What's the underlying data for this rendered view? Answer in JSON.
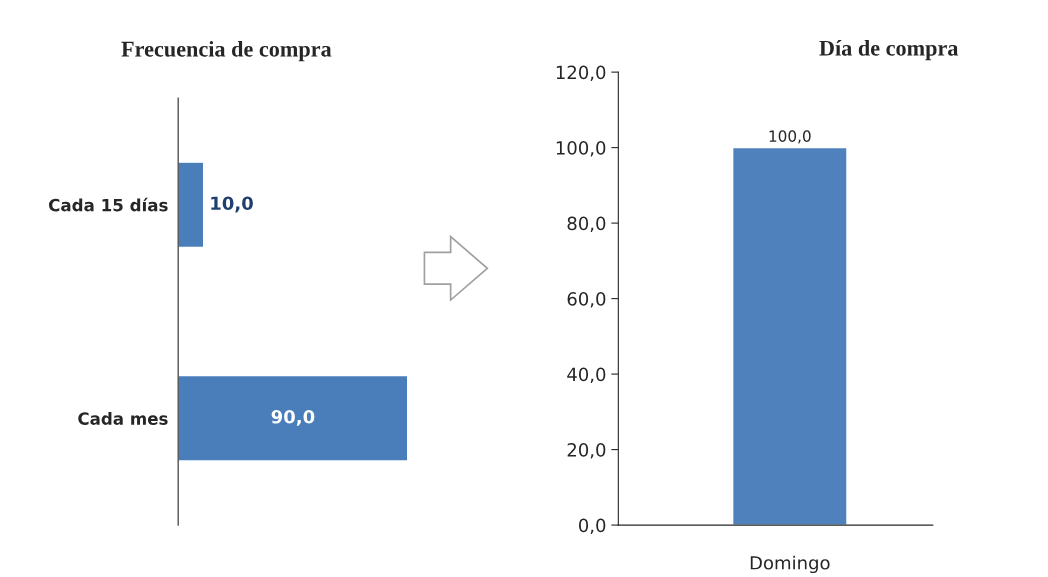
{
  "chart_data": [
    {
      "type": "bar",
      "title": "Frecuencia de compra",
      "orientation": "horizontal",
      "categories": [
        "Cada 15 días",
        "Cada mes"
      ],
      "values": [
        10,
        90
      ],
      "value_labels": [
        "10,0",
        "90,0"
      ],
      "color": "#4a7ebb",
      "tick_labels": "y",
      "grid": false,
      "legend": false
    },
    {
      "type": "bar",
      "title": "Día de compra",
      "categories": [
        "Domingo"
      ],
      "values": [
        100
      ],
      "value_labels": [
        "100,0"
      ],
      "color": "#4f81bd",
      "ylim": [
        0,
        120
      ],
      "yticks": [
        {
          "value": 0,
          "label": "0,0"
        },
        {
          "value": 20,
          "label": "20,0"
        },
        {
          "value": 40,
          "label": "40,0"
        },
        {
          "value": 60,
          "label": "60,0"
        },
        {
          "value": 80,
          "label": "80,0"
        },
        {
          "value": 100,
          "label": "100,0"
        },
        {
          "value": 120,
          "label": "120,0"
        }
      ],
      "grid": false,
      "legend": false
    }
  ]
}
